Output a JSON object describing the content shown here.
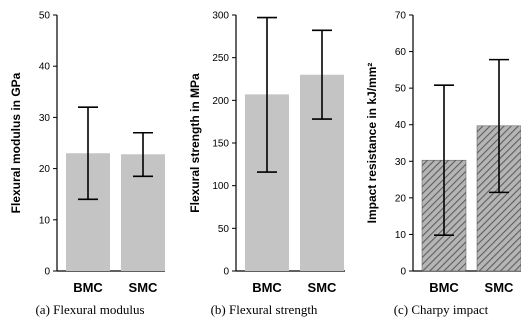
{
  "chart_data": [
    {
      "type": "bar",
      "caption": "(a) Flexural modulus",
      "ylabel": "Flexural modulus in GPa",
      "xlabel": "",
      "categories": [
        "BMC",
        "SMC"
      ],
      "values": [
        23.0,
        22.8
      ],
      "errors_low": [
        14.0,
        18.5
      ],
      "errors_high": [
        32.0,
        27.0
      ],
      "ylim": [
        0,
        50
      ],
      "yticks": [
        0,
        10,
        20,
        30,
        40,
        50
      ],
      "bar_style": "solid",
      "bar_color": "#c4c4c4"
    },
    {
      "type": "bar",
      "caption": "(b) Flexural strength",
      "ylabel": "Flexural strength in MPa",
      "xlabel": "",
      "categories": [
        "BMC",
        "SMC"
      ],
      "values": [
        207,
        230
      ],
      "errors_low": [
        116,
        178
      ],
      "errors_high": [
        297,
        282
      ],
      "ylim": [
        0,
        300
      ],
      "yticks": [
        0,
        50,
        100,
        150,
        200,
        250,
        300
      ],
      "bar_style": "solid",
      "bar_color": "#c4c4c4"
    },
    {
      "type": "bar",
      "caption": "(c) Charpy impact",
      "ylabel": "Impact resistance in kJ/mm²",
      "xlabel": "",
      "categories": [
        "BMC",
        "SMC"
      ],
      "values": [
        30.3,
        39.7
      ],
      "errors_low": [
        9.8,
        21.5
      ],
      "errors_high": [
        50.8,
        57.8
      ],
      "ylim": [
        0,
        70
      ],
      "yticks": [
        0,
        10,
        20,
        30,
        40,
        50,
        60,
        70
      ],
      "bar_style": "hatched",
      "bar_color": "#8a8a8a"
    }
  ]
}
